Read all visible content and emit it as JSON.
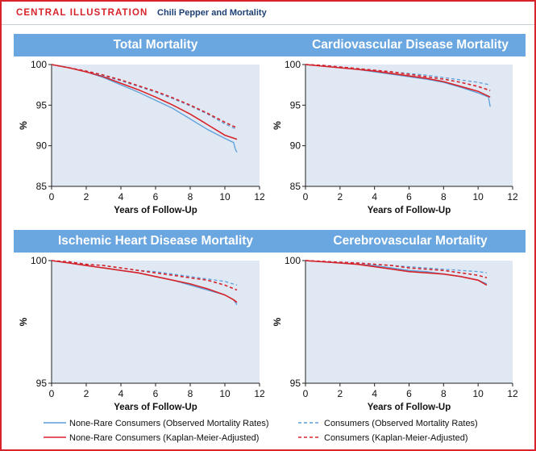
{
  "header": {
    "label": "CENTRAL ILLUSTRATION",
    "title": "Chili Pepper and Mortality"
  },
  "colors": {
    "brand_red": "#d8232a",
    "panel_blue": "#6aa6e0",
    "plot_bg": "#dfe8f3",
    "series_blue": "#5b9ed8",
    "series_red": "#d8232a"
  },
  "legend": [
    {
      "label": "None-Rare Consumers (Observed Mortality Rates)",
      "color": "#5b9ed8",
      "dash": false
    },
    {
      "label": "Consumers (Observed Mortality Rates)",
      "color": "#5b9ed8",
      "dash": true
    },
    {
      "label": "None-Rare Consumers (Kaplan-Meier-Adjusted)",
      "color": "#d8232a",
      "dash": false
    },
    {
      "label": "Consumers (Kaplan-Meier-Adjusted)",
      "color": "#d8232a",
      "dash": true
    }
  ],
  "chart_data": [
    {
      "type": "line",
      "title": "Total Mortality",
      "xlabel": "Years of Follow-Up",
      "ylabel": "%",
      "xlim": [
        0,
        12
      ],
      "ylim": [
        85,
        100
      ],
      "xticks": [
        0,
        2,
        4,
        6,
        8,
        10,
        12
      ],
      "yticks": [
        85,
        90,
        95,
        100
      ],
      "series": [
        {
          "name": "None-Rare Consumers (Observed Mortality Rates)",
          "color": "#5b9ed8",
          "dash": false,
          "x": [
            0,
            1,
            2,
            3,
            4,
            5,
            6,
            7,
            8,
            9,
            10,
            10.5,
            10.6,
            10.7
          ],
          "y": [
            100,
            99.6,
            99.1,
            98.4,
            97.5,
            96.6,
            95.6,
            94.6,
            93.3,
            92.0,
            90.9,
            90.4,
            89.6,
            89.2
          ]
        },
        {
          "name": "None-Rare Consumers (Kaplan-Meier-Adjusted)",
          "color": "#d8232a",
          "dash": false,
          "x": [
            0,
            1,
            2,
            3,
            4,
            5,
            6,
            7,
            8,
            9,
            10,
            10.7
          ],
          "y": [
            100,
            99.6,
            99.1,
            98.5,
            97.7,
            96.9,
            96.0,
            95.0,
            93.9,
            92.6,
            91.3,
            90.8
          ]
        },
        {
          "name": "Consumers (Observed Mortality Rates)",
          "color": "#5b9ed8",
          "dash": true,
          "x": [
            0,
            1,
            2,
            3,
            4,
            5,
            6,
            7,
            8,
            9,
            10,
            10.7
          ],
          "y": [
            100,
            99.6,
            99.2,
            98.6,
            98.0,
            97.3,
            96.6,
            95.8,
            94.9,
            93.9,
            92.7,
            92.0
          ]
        },
        {
          "name": "Consumers (Kaplan-Meier-Adjusted)",
          "color": "#d8232a",
          "dash": true,
          "x": [
            0,
            1,
            2,
            3,
            4,
            5,
            6,
            7,
            8,
            9,
            10,
            10.7
          ],
          "y": [
            100,
            99.6,
            99.2,
            98.7,
            98.1,
            97.4,
            96.7,
            95.9,
            95.0,
            94.0,
            92.9,
            92.2
          ]
        }
      ]
    },
    {
      "type": "line",
      "title": "Cardiovascular Disease Mortality",
      "xlabel": "Years of Follow-Up",
      "ylabel": "%",
      "xlim": [
        0,
        12
      ],
      "ylim": [
        85,
        100
      ],
      "xticks": [
        0,
        2,
        4,
        6,
        8,
        10,
        12
      ],
      "yticks": [
        85,
        90,
        95,
        100
      ],
      "series": [
        {
          "name": "None-Rare Consumers (Observed Mortality Rates)",
          "color": "#5b9ed8",
          "dash": false,
          "x": [
            0,
            1,
            2,
            3,
            4,
            5,
            6,
            7,
            8,
            9,
            10,
            10.6,
            10.7
          ],
          "y": [
            100,
            99.8,
            99.6,
            99.4,
            99.1,
            98.8,
            98.5,
            98.2,
            97.8,
            97.2,
            96.5,
            96.0,
            94.8
          ]
        },
        {
          "name": "None-Rare Consumers (Kaplan-Meier-Adjusted)",
          "color": "#d8232a",
          "dash": false,
          "x": [
            0,
            1,
            2,
            3,
            4,
            5,
            6,
            7,
            8,
            9,
            10,
            10.7
          ],
          "y": [
            100,
            99.8,
            99.6,
            99.4,
            99.2,
            98.9,
            98.6,
            98.3,
            97.9,
            97.3,
            96.7,
            96.0
          ]
        },
        {
          "name": "Consumers (Observed Mortality Rates)",
          "color": "#5b9ed8",
          "dash": true,
          "x": [
            0,
            1,
            2,
            3,
            4,
            5,
            6,
            7,
            8,
            9,
            10,
            10.7
          ],
          "y": [
            100,
            99.9,
            99.7,
            99.5,
            99.3,
            99.1,
            98.9,
            98.7,
            98.4,
            98.1,
            97.8,
            97.5
          ]
        },
        {
          "name": "Consumers (Kaplan-Meier-Adjusted)",
          "color": "#d8232a",
          "dash": true,
          "x": [
            0,
            1,
            2,
            3,
            4,
            5,
            6,
            7,
            8,
            9,
            10,
            10.7
          ],
          "y": [
            100,
            99.9,
            99.7,
            99.5,
            99.3,
            99.1,
            98.8,
            98.5,
            98.2,
            97.8,
            97.3,
            96.8
          ]
        }
      ]
    },
    {
      "type": "line",
      "title": "Ischemic Heart Disease Mortality",
      "xlabel": "Years of Follow-Up",
      "ylabel": "%",
      "xlim": [
        0,
        12
      ],
      "ylim": [
        95,
        100
      ],
      "xticks": [
        0,
        2,
        4,
        6,
        8,
        10,
        12
      ],
      "yticks": [
        95,
        100
      ],
      "series": [
        {
          "name": "None-Rare Consumers (Observed Mortality Rates)",
          "color": "#5b9ed8",
          "dash": false,
          "x": [
            0,
            1,
            2,
            3,
            4,
            5,
            6,
            7,
            8,
            9,
            10,
            10.5,
            10.7
          ],
          "y": [
            100,
            99.9,
            99.8,
            99.7,
            99.6,
            99.5,
            99.35,
            99.2,
            99.0,
            98.8,
            98.6,
            98.4,
            98.2
          ]
        },
        {
          "name": "None-Rare Consumers (Kaplan-Meier-Adjusted)",
          "color": "#d8232a",
          "dash": false,
          "x": [
            0,
            1,
            2,
            3,
            4,
            5,
            6,
            7,
            8,
            9,
            10,
            10.5,
            10.7
          ],
          "y": [
            100,
            99.9,
            99.8,
            99.7,
            99.6,
            99.5,
            99.35,
            99.2,
            99.05,
            98.85,
            98.6,
            98.4,
            98.3
          ]
        },
        {
          "name": "Consumers (Observed Mortality Rates)",
          "color": "#5b9ed8",
          "dash": true,
          "x": [
            0,
            1,
            2,
            3,
            4,
            5,
            6,
            7,
            8,
            9,
            10,
            10.7
          ],
          "y": [
            100,
            99.95,
            99.85,
            99.8,
            99.7,
            99.6,
            99.55,
            99.45,
            99.35,
            99.25,
            99.15,
            99.0
          ]
        },
        {
          "name": "Consumers (Kaplan-Meier-Adjusted)",
          "color": "#d8232a",
          "dash": true,
          "x": [
            0,
            1,
            2,
            3,
            4,
            5,
            6,
            7,
            8,
            9,
            10,
            10.7
          ],
          "y": [
            100,
            99.95,
            99.85,
            99.8,
            99.7,
            99.6,
            99.5,
            99.4,
            99.3,
            99.2,
            99.0,
            98.8
          ]
        }
      ]
    },
    {
      "type": "line",
      "title": "Cerebrovascular Mortality",
      "xlabel": "Years of Follow-Up",
      "ylabel": "%",
      "xlim": [
        0,
        12
      ],
      "ylim": [
        95,
        100
      ],
      "xticks": [
        0,
        2,
        4,
        6,
        8,
        10,
        12
      ],
      "yticks": [
        95,
        100
      ],
      "series": [
        {
          "name": "None-Rare Consumers (Observed Mortality Rates)",
          "color": "#5b9ed8",
          "dash": false,
          "x": [
            0,
            1,
            2,
            3,
            4,
            5,
            6,
            7,
            8,
            9,
            10,
            10.5
          ],
          "y": [
            100,
            99.95,
            99.9,
            99.85,
            99.8,
            99.7,
            99.6,
            99.55,
            99.45,
            99.35,
            99.2,
            99.05
          ]
        },
        {
          "name": "None-Rare Consumers (Kaplan-Meier-Adjusted)",
          "color": "#d8232a",
          "dash": false,
          "x": [
            0,
            1,
            2,
            3,
            4,
            5,
            6,
            7,
            8,
            9,
            10,
            10.5
          ],
          "y": [
            100,
            99.95,
            99.9,
            99.85,
            99.75,
            99.65,
            99.55,
            99.5,
            99.45,
            99.35,
            99.2,
            99.0
          ]
        },
        {
          "name": "Consumers (Observed Mortality Rates)",
          "color": "#5b9ed8",
          "dash": true,
          "x": [
            0,
            1,
            2,
            3,
            4,
            5,
            6,
            7,
            8,
            9,
            10,
            10.5
          ],
          "y": [
            100,
            99.97,
            99.93,
            99.9,
            99.85,
            99.8,
            99.75,
            99.7,
            99.65,
            99.6,
            99.55,
            99.5
          ]
        },
        {
          "name": "Consumers (Kaplan-Meier-Adjusted)",
          "color": "#d8232a",
          "dash": true,
          "x": [
            0,
            1,
            2,
            3,
            4,
            5,
            6,
            7,
            8,
            9,
            10,
            10.5
          ],
          "y": [
            100,
            99.97,
            99.93,
            99.9,
            99.85,
            99.8,
            99.7,
            99.65,
            99.6,
            99.5,
            99.4,
            99.3
          ]
        }
      ]
    }
  ]
}
